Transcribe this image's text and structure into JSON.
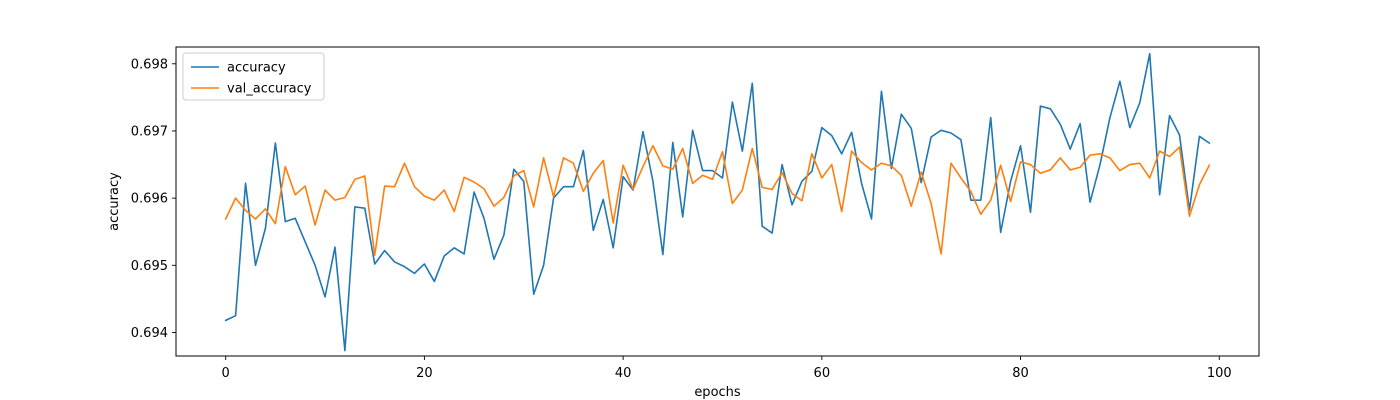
{
  "chart_data": {
    "type": "line",
    "xlabel": "epochs",
    "ylabel": "accuracy",
    "xlim": [
      -5,
      104
    ],
    "ylim": [
      0.69365,
      0.69825
    ],
    "xticks": [
      0,
      20,
      40,
      60,
      80,
      100
    ],
    "yticks": [
      0.694,
      0.695,
      0.696,
      0.697,
      0.698
    ],
    "ytick_labels": [
      "0.694",
      "0.695",
      "0.696",
      "0.697",
      "0.698"
    ],
    "grid": false,
    "legend_position": "top-left",
    "x": [
      0,
      1,
      2,
      3,
      4,
      5,
      6,
      7,
      8,
      9,
      10,
      11,
      12,
      13,
      14,
      15,
      16,
      17,
      18,
      19,
      20,
      21,
      22,
      23,
      24,
      25,
      26,
      27,
      28,
      29,
      30,
      31,
      32,
      33,
      34,
      35,
      36,
      37,
      38,
      39,
      40,
      41,
      42,
      43,
      44,
      45,
      46,
      47,
      48,
      49,
      50,
      51,
      52,
      53,
      54,
      55,
      56,
      57,
      58,
      59,
      60,
      61,
      62,
      63,
      64,
      65,
      66,
      67,
      68,
      69,
      70,
      71,
      72,
      73,
      74,
      75,
      76,
      77,
      78,
      79,
      80,
      81,
      82,
      83,
      84,
      85,
      86,
      87,
      88,
      89,
      90,
      91,
      92,
      93,
      94,
      95,
      96,
      97,
      98,
      99
    ],
    "series": [
      {
        "name": "accuracy",
        "color": "#1f77b4",
        "values": [
          0.69418,
          0.69425,
          0.69622,
          0.695,
          0.69555,
          0.69682,
          0.69565,
          0.6957,
          0.69535,
          0.695,
          0.69453,
          0.69527,
          0.69373,
          0.69587,
          0.69585,
          0.69502,
          0.69522,
          0.69505,
          0.69498,
          0.69488,
          0.69502,
          0.69476,
          0.69514,
          0.69526,
          0.69517,
          0.69609,
          0.6957,
          0.69509,
          0.69545,
          0.69643,
          0.69625,
          0.69457,
          0.695,
          0.696,
          0.69617,
          0.69617,
          0.69671,
          0.69552,
          0.69598,
          0.69526,
          0.69632,
          0.69612,
          0.69699,
          0.69625,
          0.69516,
          0.69683,
          0.69572,
          0.69701,
          0.69641,
          0.69641,
          0.6963,
          0.69743,
          0.6967,
          0.69771,
          0.69558,
          0.69548,
          0.6965,
          0.6959,
          0.69625,
          0.6964,
          0.69705,
          0.69693,
          0.69666,
          0.69698,
          0.69622,
          0.69569,
          0.69759,
          0.69644,
          0.69725,
          0.69704,
          0.69623,
          0.69691,
          0.69701,
          0.69697,
          0.69687,
          0.69597,
          0.69597,
          0.6972,
          0.69549,
          0.69625,
          0.69678,
          0.69579,
          0.69737,
          0.69733,
          0.6971,
          0.69673,
          0.69711,
          0.69594,
          0.6965,
          0.6972,
          0.69774,
          0.69705,
          0.69742,
          0.69815,
          0.69605,
          0.69723,
          0.69694,
          0.69582,
          0.69692,
          0.69682
        ]
      },
      {
        "name": "val_accuracy",
        "color": "#ff7f0e",
        "values": [
          0.69569,
          0.696,
          0.69582,
          0.69569,
          0.69584,
          0.69562,
          0.69647,
          0.69605,
          0.69618,
          0.6956,
          0.69612,
          0.69597,
          0.69601,
          0.69628,
          0.69633,
          0.69515,
          0.69618,
          0.69617,
          0.69652,
          0.69617,
          0.69603,
          0.69597,
          0.69612,
          0.6958,
          0.69631,
          0.69624,
          0.69614,
          0.69588,
          0.69601,
          0.69633,
          0.69641,
          0.69587,
          0.6966,
          0.69602,
          0.6966,
          0.69652,
          0.6961,
          0.69637,
          0.69656,
          0.69563,
          0.69649,
          0.69613,
          0.69647,
          0.69678,
          0.69648,
          0.69643,
          0.69674,
          0.69622,
          0.69634,
          0.69628,
          0.69669,
          0.69592,
          0.69612,
          0.69674,
          0.69616,
          0.69613,
          0.69638,
          0.69607,
          0.69596,
          0.69666,
          0.6963,
          0.6965,
          0.6958,
          0.6967,
          0.69653,
          0.69642,
          0.69652,
          0.69648,
          0.69634,
          0.69588,
          0.69639,
          0.69592,
          0.69517,
          0.69652,
          0.6963,
          0.6961,
          0.69576,
          0.69597,
          0.69649,
          0.69595,
          0.69654,
          0.6965,
          0.69637,
          0.69642,
          0.6966,
          0.69642,
          0.69646,
          0.69664,
          0.69666,
          0.6966,
          0.69641,
          0.6965,
          0.69652,
          0.6963,
          0.6967,
          0.69662,
          0.69676,
          0.69573,
          0.6962,
          0.69649
        ]
      }
    ]
  }
}
